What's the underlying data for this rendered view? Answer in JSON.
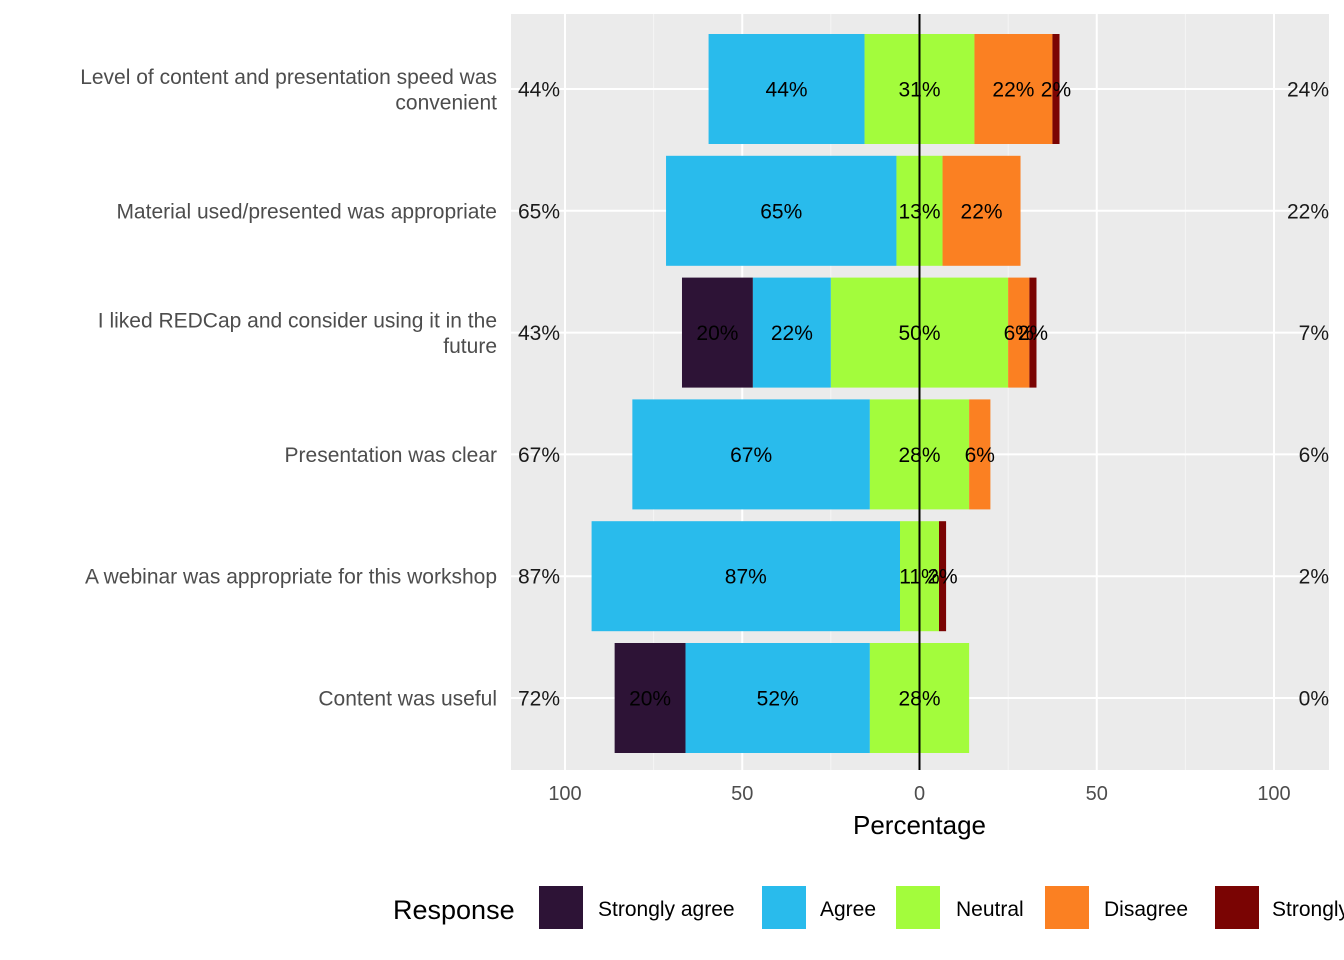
{
  "chart_data": {
    "type": "bar",
    "subtype": "diverging-stacked-horizontal",
    "xlabel": "Percentage",
    "xticks": [
      {
        "value": -100,
        "label": "100"
      },
      {
        "value": -50,
        "label": "50"
      },
      {
        "value": 0,
        "label": "0"
      },
      {
        "value": 50,
        "label": "50"
      },
      {
        "value": 100,
        "label": "100"
      }
    ],
    "xlim": [
      -115,
      115
    ],
    "grid": true,
    "legend": {
      "title": "Response",
      "position": "bottom",
      "entries": [
        {
          "name": "Strongly agree",
          "color": "#2d1336"
        },
        {
          "name": "Agree",
          "color": "#29bbec"
        },
        {
          "name": "Neutral",
          "color": "#a3fc3c"
        },
        {
          "name": "Disagree",
          "color": "#fb8022"
        },
        {
          "name": "Strongly disagree",
          "color": "#7a0403"
        }
      ]
    },
    "categories": [
      "Level of content and presentation speed was convenient",
      "Material used/presented was appropriate",
      "I liked REDCap and consider using it in the future",
      "Presentation was clear",
      "A webinar was appropriate for this workshop",
      "Content was useful"
    ],
    "category_label_lines": [
      [
        "Level of content and presentation speed was",
        "convenient"
      ],
      [
        "Material used/presented was appropriate"
      ],
      [
        "I liked REDCap and consider using it in the",
        "future"
      ],
      [
        "Presentation was clear"
      ],
      [
        "A webinar was appropriate for this workshop"
      ],
      [
        "Content was useful"
      ]
    ],
    "series": [
      {
        "name": "Strongly agree",
        "values": [
          0,
          0,
          20,
          0,
          0,
          20
        ]
      },
      {
        "name": "Agree",
        "values": [
          44,
          65,
          22,
          67,
          87,
          52
        ]
      },
      {
        "name": "Neutral",
        "values": [
          31,
          13,
          50,
          28,
          11,
          28
        ]
      },
      {
        "name": "Disagree",
        "values": [
          22,
          22,
          6,
          6,
          0,
          0
        ]
      },
      {
        "name": "Strongly disagree",
        "values": [
          2,
          0,
          2,
          0,
          2,
          0
        ]
      }
    ],
    "left_totals": [
      "44%",
      "65%",
      "43%",
      "67%",
      "87%",
      "72%"
    ],
    "right_totals": [
      "24%",
      "22%",
      "7%",
      "6%",
      "2%",
      "0%"
    ]
  }
}
